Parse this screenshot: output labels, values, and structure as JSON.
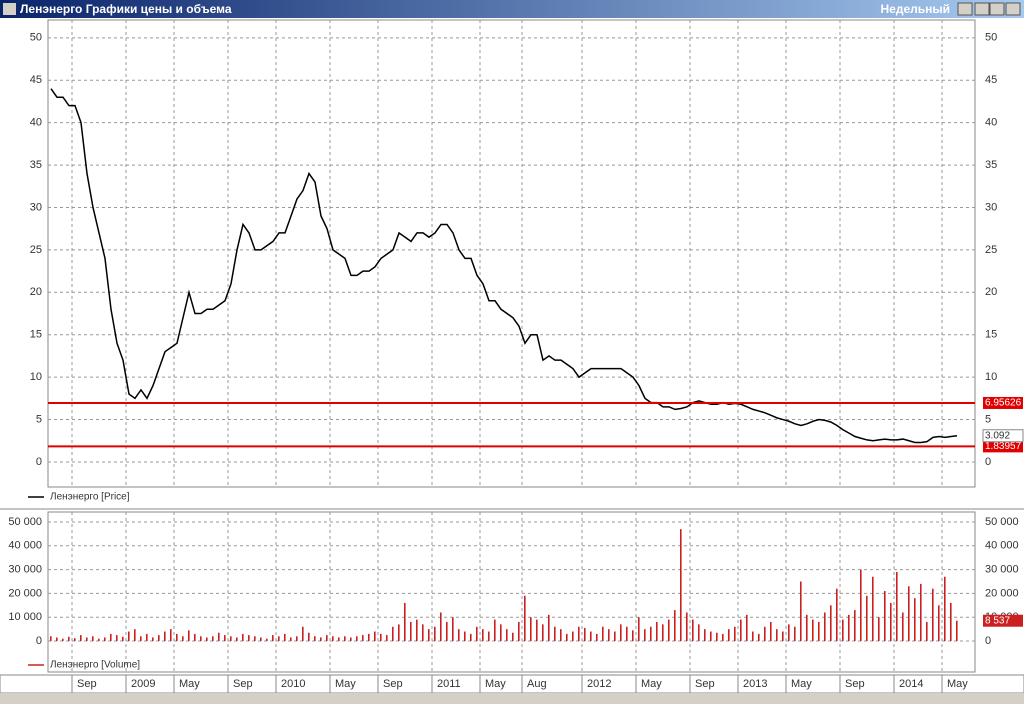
{
  "window": {
    "title": "Ленэнерго Графики цены и объема",
    "timeframe": "Недельный"
  },
  "chart_data": [
    {
      "type": "line",
      "series": [
        {
          "name": "Ленэнерго [Price]",
          "color": "#000000",
          "values": [
            44,
            43,
            43,
            42,
            42,
            40,
            34,
            30,
            27,
            24,
            18,
            14,
            12,
            8,
            7.5,
            8.5,
            7.5,
            9,
            11,
            13,
            13.5,
            14,
            17,
            20,
            17.5,
            17.5,
            18,
            18,
            18.5,
            19,
            21,
            25,
            28,
            27,
            25,
            25,
            25.5,
            26,
            27,
            27,
            29,
            31,
            32,
            34,
            33,
            29,
            27.5,
            25,
            24.5,
            24,
            22,
            22,
            22.5,
            22.5,
            23,
            24,
            24.5,
            25,
            27,
            26.5,
            26,
            27,
            27,
            26.5,
            27,
            28,
            28,
            27,
            25,
            24,
            24,
            22,
            21,
            19,
            19,
            18,
            17.5,
            17,
            16,
            14,
            15,
            15,
            12,
            12.5,
            12,
            12,
            11.5,
            11,
            10,
            10.5,
            11,
            11,
            11,
            11,
            11,
            11,
            10.5,
            10,
            9,
            7.5,
            7,
            7,
            6.5,
            6.5,
            6.2,
            6.3,
            6.5,
            7,
            7.2,
            7,
            6.8,
            6.8,
            7,
            6.8,
            6.9,
            6.8,
            6.5,
            6.2,
            6,
            5.8,
            5.5,
            5.2,
            5,
            4.8,
            4.5,
            4.3,
            4.5,
            4.8,
            5,
            4.9,
            4.7,
            4.3,
            3.8,
            3.4,
            3,
            2.8,
            2.6,
            2.5,
            2.6,
            2.7,
            2.6,
            2.6,
            2.7,
            2.5,
            2.3,
            2.3,
            2.4,
            2.9,
            3,
            2.9,
            3,
            3.092
          ]
        }
      ],
      "ylim": [
        -2.95,
        52.1
      ],
      "yticks": [
        0,
        5,
        10,
        15,
        20,
        25,
        30,
        35,
        40,
        45,
        50
      ],
      "grid": true,
      "levels": [
        {
          "value": 6.95626,
          "color": "#e00000"
        },
        {
          "value": 1.83957,
          "color": "#e00000"
        }
      ]
    },
    {
      "type": "bar",
      "series": [
        {
          "name": "Ленэнерго [Volume]",
          "color": "#cc2020",
          "values": [
            2000,
            1500,
            1000,
            1800,
            1200,
            2500,
            1500,
            2000,
            1000,
            1500,
            3000,
            2500,
            1800,
            4000,
            5000,
            2000,
            3000,
            1500,
            2500,
            4000,
            5000,
            3000,
            2000,
            4500,
            3000,
            2000,
            1500,
            2000,
            3500,
            2500,
            2000,
            1500,
            3000,
            2500,
            2000,
            1500,
            1000,
            2500,
            2000,
            3000,
            1500,
            2000,
            6000,
            3500,
            2000,
            1500,
            2500,
            2000,
            1500,
            2000,
            1500,
            2000,
            2500,
            3000,
            4000,
            3000,
            2500,
            6000,
            7000,
            16000,
            8000,
            9000,
            7000,
            5000,
            6000,
            12000,
            8000,
            10000,
            5000,
            4000,
            3000,
            6000,
            5000,
            4000,
            9000,
            7000,
            5000,
            3500,
            8000,
            19000,
            10000,
            9000,
            7000,
            11000,
            6000,
            5000,
            3000,
            4000,
            6000,
            5500,
            4000,
            3000,
            6000,
            5000,
            4000,
            7000,
            6000,
            4500,
            10000,
            5000,
            6000,
            8000,
            7000,
            9000,
            13000,
            47000,
            12000,
            9000,
            7000,
            5000,
            4000,
            3500,
            3000,
            5000,
            6000,
            9000,
            11000,
            4000,
            3000,
            6000,
            8000,
            5000,
            4000,
            7000,
            6000,
            25000,
            11000,
            9000,
            8000,
            12000,
            15000,
            22000,
            9000,
            11000,
            13000,
            30000,
            19000,
            27000,
            10000,
            21000,
            16000,
            29000,
            12000,
            23000,
            18000,
            24000,
            8000,
            22000,
            15000,
            27000,
            16000,
            8537
          ],
          "value_labels": {
            "151": "8 537"
          }
        }
      ],
      "categories": [
        null,
        null,
        null,
        null,
        "Sep",
        null,
        null,
        null,
        null,
        null,
        null,
        null,
        null,
        "2009",
        null,
        null,
        null,
        null,
        null,
        null,
        null,
        "May",
        null,
        null,
        null,
        null,
        null,
        null,
        null,
        null,
        "Sep",
        null,
        null,
        null,
        null,
        null,
        null,
        null,
        "2010",
        null,
        null,
        null,
        null,
        null,
        null,
        null,
        null,
        "May",
        null,
        null,
        null,
        null,
        null,
        null,
        null,
        "Sep",
        null,
        null,
        null,
        null,
        null,
        null,
        null,
        null,
        "2011",
        null,
        null,
        null,
        null,
        null,
        null,
        null,
        "May",
        null,
        null,
        null,
        null,
        null,
        null,
        "Aug",
        null,
        null,
        null,
        null,
        null,
        null,
        null,
        null,
        null,
        "2012",
        null,
        null,
        null,
        null,
        null,
        null,
        null,
        null,
        "May",
        null,
        null,
        null,
        null,
        null,
        null,
        null,
        null,
        "Sep",
        null,
        null,
        null,
        null,
        null,
        null,
        null,
        "2013",
        null,
        null,
        null,
        null,
        null,
        null,
        null,
        "May",
        null,
        null,
        null,
        null,
        null,
        null,
        null,
        null,
        "Sep",
        null,
        null,
        null,
        null,
        null,
        null,
        null,
        null,
        "2014",
        null,
        null,
        null,
        null,
        null,
        null,
        null,
        "May",
        null,
        null
      ],
      "ylim": [
        -13000,
        54200
      ],
      "yticks": [
        0,
        {
          "value": 10000,
          "label": "10 000"
        },
        {
          "value": 20000,
          "label": "20 000"
        },
        {
          "value": 30000,
          "label": "30 000"
        },
        {
          "value": 40000,
          "label": "40 000"
        },
        {
          "value": 50000,
          "label": "50 000"
        }
      ],
      "grid": true
    }
  ]
}
